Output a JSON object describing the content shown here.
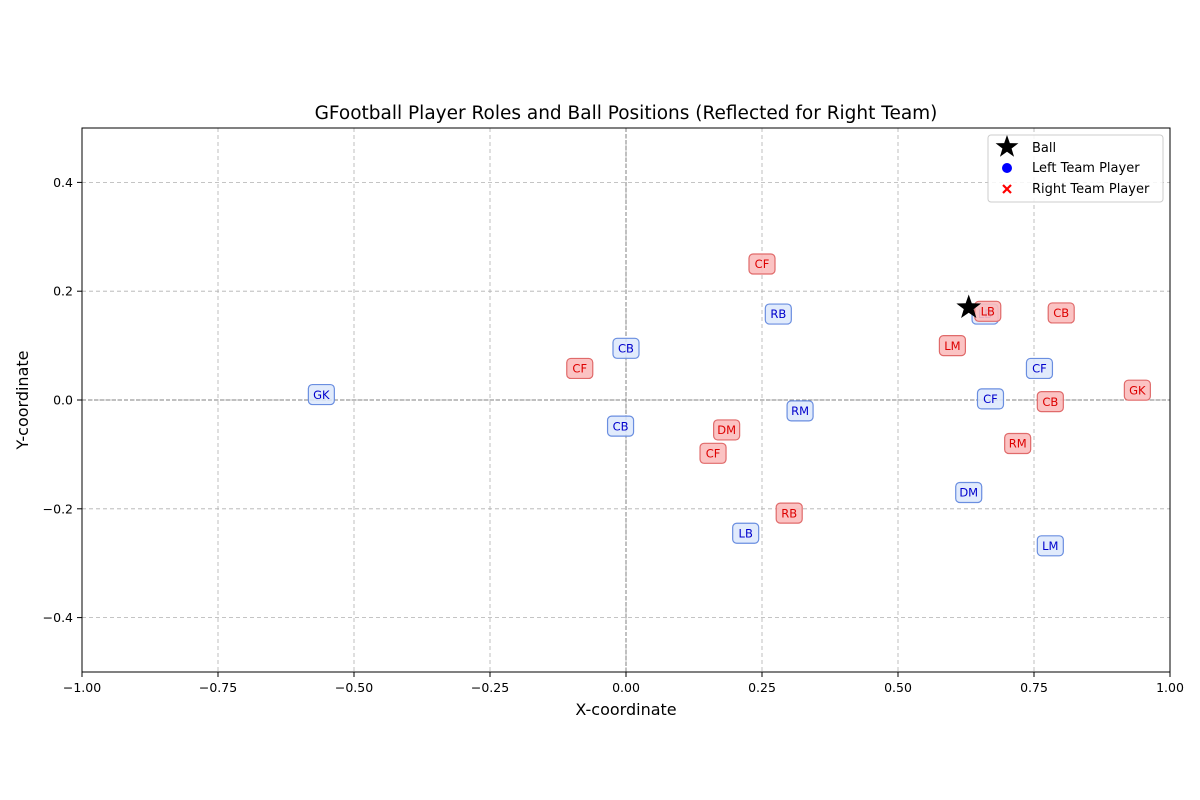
{
  "chart_data": {
    "type": "scatter",
    "title": "GFootball Player Roles and Ball Positions (Reflected for Right Team)",
    "xlabel": "X-coordinate",
    "ylabel": "Y-coordinate",
    "xlim": [
      -1.0,
      1.0
    ],
    "ylim": [
      -0.5,
      0.5
    ],
    "xticks": [
      -1.0,
      -0.75,
      -0.5,
      -0.25,
      0.0,
      0.25,
      0.5,
      0.75,
      1.0
    ],
    "xtick_labels": [
      "−1.00",
      "−0.75",
      "−0.50",
      "−0.25",
      "0.00",
      "0.25",
      "0.50",
      "0.75",
      "1.00"
    ],
    "yticks": [
      -0.4,
      -0.2,
      0.0,
      0.2,
      0.4
    ],
    "ytick_labels": [
      "−0.4",
      "−0.2",
      "0.0",
      "0.2",
      "0.4"
    ],
    "grid": true,
    "reference_lines": {
      "x": 0.0,
      "y": 0.0
    },
    "legend_position": "top-right",
    "legend": [
      {
        "label": "Ball",
        "marker": "star",
        "color": "#000000"
      },
      {
        "label": "Left Team Player",
        "marker": "circle",
        "color": "#0000ff"
      },
      {
        "label": "Right Team Player",
        "marker": "x",
        "color": "#ff0000"
      }
    ],
    "colors": {
      "left_text": "#0000cc",
      "left_fill": "#dce8fb",
      "left_border": "#6a8ee0",
      "right_text": "#dd0000",
      "right_fill": "#fbbcbc",
      "right_border": "#e06a6a",
      "grid": "#b0b0b0",
      "ref_line": "#808080"
    },
    "ball": {
      "x": 0.63,
      "y": 0.17
    },
    "series": [
      {
        "name": "Left Team Player",
        "points": [
          {
            "role": "GK",
            "x": -0.56,
            "y": 0.01
          },
          {
            "role": "CB",
            "x": 0.0,
            "y": 0.095
          },
          {
            "role": "CB",
            "x": -0.01,
            "y": -0.048
          },
          {
            "role": "LB",
            "x": 0.22,
            "y": -0.245
          },
          {
            "role": "RB",
            "x": 0.28,
            "y": 0.158
          },
          {
            "role": "RM",
            "x": 0.32,
            "y": -0.02
          },
          {
            "role": "DM",
            "x": 0.63,
            "y": -0.17
          },
          {
            "role": "CF",
            "x": 0.67,
            "y": 0.002
          },
          {
            "role": "CF",
            "x": 0.76,
            "y": 0.058
          },
          {
            "role": "LM",
            "x": 0.78,
            "y": -0.268
          },
          {
            "role": "LB",
            "x": 0.66,
            "y": 0.158
          }
        ]
      },
      {
        "name": "Right Team Player",
        "points": [
          {
            "role": "GK",
            "x": 0.94,
            "y": 0.018
          },
          {
            "role": "CB",
            "x": 0.8,
            "y": 0.16
          },
          {
            "role": "CB",
            "x": 0.78,
            "y": -0.003
          },
          {
            "role": "LB",
            "x": 0.665,
            "y": 0.163
          },
          {
            "role": "RB",
            "x": 0.3,
            "y": -0.208
          },
          {
            "role": "LM",
            "x": 0.6,
            "y": 0.1
          },
          {
            "role": "RM",
            "x": 0.72,
            "y": -0.08
          },
          {
            "role": "DM",
            "x": 0.185,
            "y": -0.055
          },
          {
            "role": "CF",
            "x": 0.25,
            "y": 0.25
          },
          {
            "role": "CF",
            "x": -0.085,
            "y": 0.058
          },
          {
            "role": "CF",
            "x": 0.16,
            "y": -0.098
          }
        ]
      }
    ]
  }
}
